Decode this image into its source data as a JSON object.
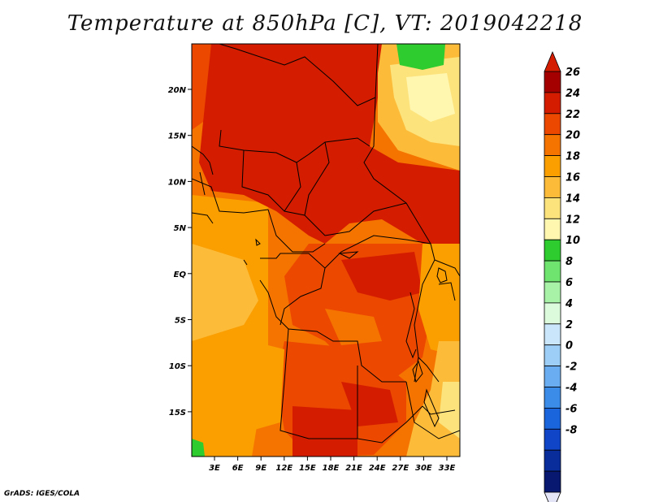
{
  "title": "Temperature at 850hPa [C], VT: 2019042218",
  "credit": "GrADS: IGES/COLA",
  "map": {
    "lon_labels": [
      "3E",
      "6E",
      "9E",
      "12E",
      "15E",
      "18E",
      "21E",
      "24E",
      "27E",
      "30E",
      "33E"
    ],
    "lat_labels": [
      "20N",
      "15N",
      "10N",
      "5N",
      "EQ",
      "5S",
      "10S",
      "15S"
    ]
  },
  "colorbar": {
    "labels": [
      "26",
      "24",
      "22",
      "20",
      "18",
      "16",
      "14",
      "12",
      "10",
      "8",
      "6",
      "4",
      "2",
      "0",
      "-2",
      "-4",
      "-6",
      "-8"
    ],
    "colors": [
      "#a50000",
      "#d41c00",
      "#ec4800",
      "#f57400",
      "#fb9e00",
      "#fcbc3a",
      "#fde37c",
      "#fff6b0",
      "#2ecc2e",
      "#6fe46f",
      "#a7f2a7",
      "#dcfadc",
      "#c9e6fb",
      "#9dcef7",
      "#6aaef1",
      "#3b8be9",
      "#1a64dc",
      "#0f45c6",
      "#0a2d9c",
      "#081770"
    ],
    "triangle_colors": {
      "top": "#d41c00",
      "bottom": "#e4e4f7"
    }
  }
}
